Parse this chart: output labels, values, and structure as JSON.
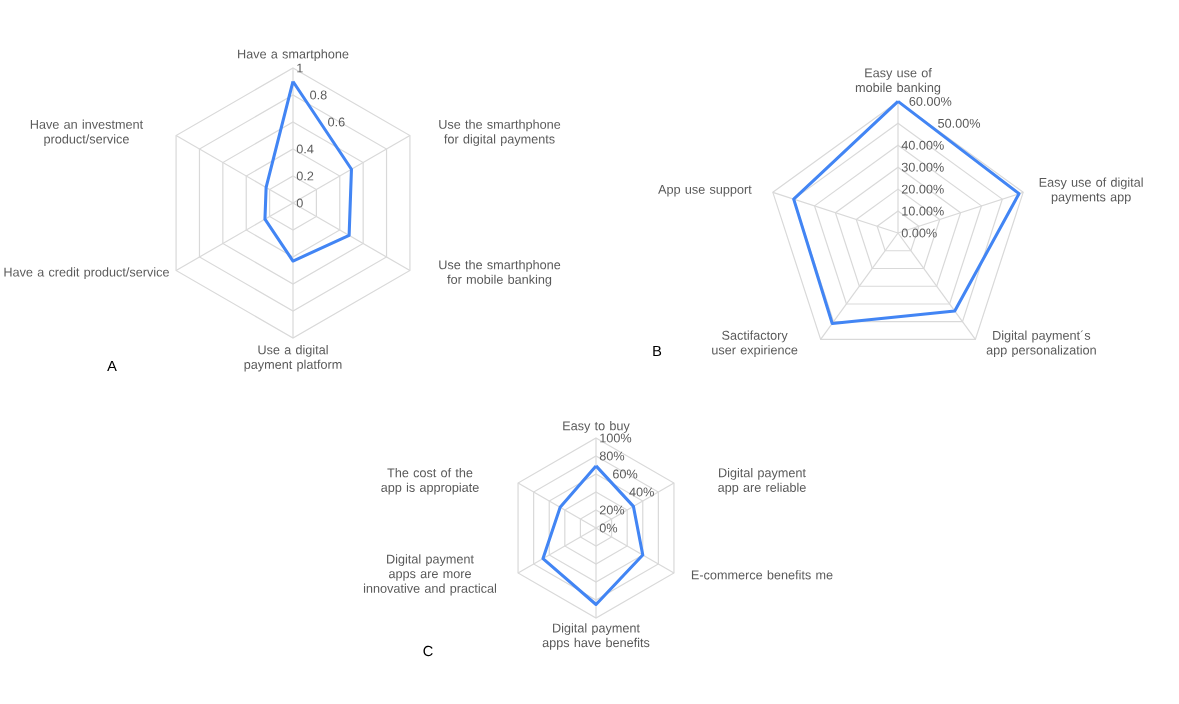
{
  "chart_data": [
    {
      "type": "radar",
      "categories": [
        "Have a smartphone",
        "Use the smarthphone for digital payments",
        "Use the smarthphone for mobile banking",
        "Use a digital payment platform",
        "Have a credit product/service",
        "Have an investment product/service"
      ],
      "series": [
        {
          "color": "#4285f4",
          "values": [
            0.9,
            0.5,
            0.48,
            0.43,
            0.24,
            0.23
          ]
        }
      ],
      "ylim": [
        0,
        1
      ],
      "yticks": [
        0,
        0.2,
        0.4,
        0.6,
        0.8,
        1
      ],
      "grid": true,
      "annotations": [
        "A"
      ]
    },
    {
      "type": "radar",
      "categories": [
        "Easy use of mobile banking",
        "Easy use of digital payments app",
        "Digital payment´s app personalization",
        "Sactifactory user expirience",
        "App use support"
      ],
      "series": [
        {
          "color": "#4285f4",
          "values": [
            60,
            58,
            44,
            51,
            50
          ]
        }
      ],
      "ylim": [
        0,
        60
      ],
      "yticks": [
        {
          "value": 0,
          "label": "0.00%"
        },
        {
          "value": 10,
          "label": "10.00%"
        },
        {
          "value": 20,
          "label": "20.00%"
        },
        {
          "value": 30,
          "label": "30.00%"
        },
        {
          "value": 40,
          "label": "40.00%"
        },
        {
          "value": 50,
          "label": "50.00%"
        },
        {
          "value": 60,
          "label": "60.00%"
        }
      ],
      "grid": true,
      "annotations": [
        "B"
      ]
    },
    {
      "type": "radar",
      "categories": [
        "Easy to buy",
        "Digital payment app are reliable",
        "E-commerce benefits me",
        "Digital payment apps have benefits",
        "Digital payment apps are more innovative and practical",
        "The cost of the app is appropiate"
      ],
      "series": [
        {
          "color": "#4285f4",
          "values": [
            69,
            48,
            60,
            85,
            68,
            46
          ]
        }
      ],
      "ylim": [
        0,
        100
      ],
      "yticks": [
        {
          "value": 0,
          "label": "0%"
        },
        {
          "value": 20,
          "label": "20%"
        },
        {
          "value": 40,
          "label": "40%"
        },
        {
          "value": 60,
          "label": "60%"
        },
        {
          "value": 80,
          "label": "80%"
        },
        {
          "value": 100,
          "label": "100%"
        }
      ],
      "grid": true,
      "annotations": [
        "C"
      ]
    }
  ]
}
